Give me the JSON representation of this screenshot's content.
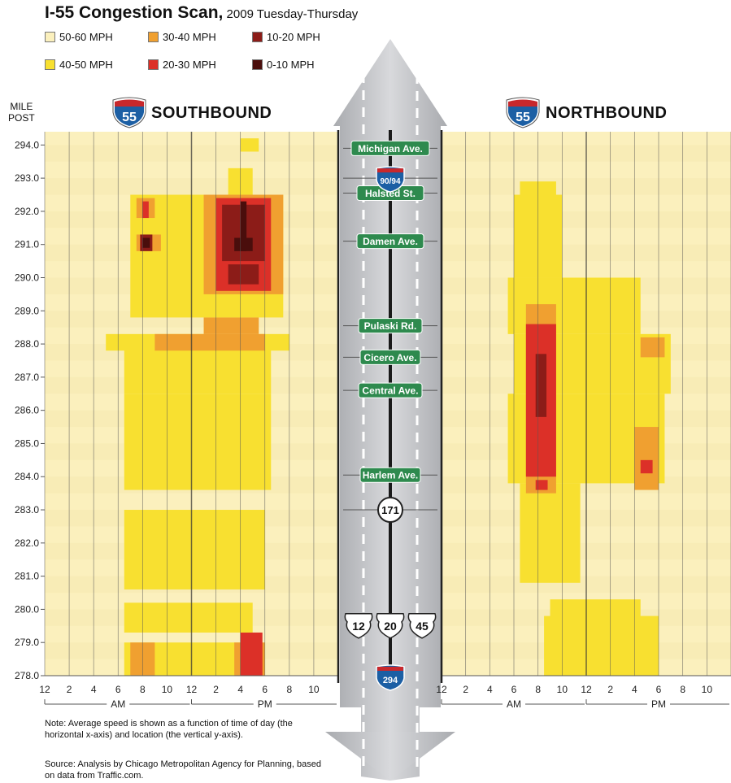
{
  "title": {
    "main": "I-55 Congestion Scan,",
    "sub": " 2009 Tuesday-Thursday"
  },
  "legend": [
    {
      "label": "50-60 MPH",
      "color": "#fbf0bd"
    },
    {
      "label": "30-40 MPH",
      "color": "#f0a030"
    },
    {
      "label": "10-20 MPH",
      "color": "#8c1c18"
    },
    {
      "label": "40-50 MPH",
      "color": "#f8e030"
    },
    {
      "label": "20-30 MPH",
      "color": "#dc3028"
    },
    {
      "label": "0-10 MPH",
      "color": "#4a0e0c"
    }
  ],
  "axis": {
    "mile_post_line1": "MILE",
    "mile_post_line2": "POST"
  },
  "panels": {
    "southbound": {
      "shield": "55",
      "label": "SOUTHBOUND"
    },
    "northbound": {
      "shield": "55",
      "label": "NORTHBOUND"
    }
  },
  "chart_data": {
    "type": "heatmap",
    "x_label_ticks": [
      "12",
      "2",
      "4",
      "6",
      "8",
      "10",
      "12",
      "2",
      "4",
      "6",
      "8",
      "10"
    ],
    "x_period_labels": [
      "AM",
      "PM"
    ],
    "x_range_hours": [
      0,
      24
    ],
    "y_ticks": [
      "294.0",
      "293.0",
      "292.0",
      "291.0",
      "290.0",
      "289.0",
      "288.0",
      "287.0",
      "286.0",
      "285.0",
      "284.0",
      "283.0",
      "282.0",
      "281.0",
      "280.0",
      "279.0",
      "278.0"
    ],
    "y_range_mile_post": [
      278,
      294.4
    ],
    "series": [
      {
        "name": "SOUTHBOUND",
        "cells": [
          {
            "h0": 6.5,
            "h1": 16.0,
            "m0": 278.0,
            "m1": 279.0,
            "speed": "40-50"
          },
          {
            "h0": 7.0,
            "h1": 9.0,
            "m0": 278.0,
            "m1": 279.0,
            "speed": "30-40"
          },
          {
            "h0": 15.5,
            "h1": 18.0,
            "m0": 278.0,
            "m1": 279.0,
            "speed": "30-40"
          },
          {
            "h0": 16.0,
            "h1": 17.8,
            "m0": 278.0,
            "m1": 279.3,
            "speed": "20-30"
          },
          {
            "h0": 6.5,
            "h1": 17.0,
            "m0": 279.3,
            "m1": 280.2,
            "speed": "40-50"
          },
          {
            "h0": 6.5,
            "h1": 18.0,
            "m0": 280.6,
            "m1": 283.0,
            "speed": "40-50"
          },
          {
            "h0": 6.5,
            "h1": 18.5,
            "m0": 283.6,
            "m1": 286.5,
            "speed": "40-50"
          },
          {
            "h0": 6.5,
            "h1": 18.5,
            "m0": 286.5,
            "m1": 288.0,
            "speed": "40-50"
          },
          {
            "h0": 5.0,
            "h1": 20.0,
            "m0": 287.8,
            "m1": 288.3,
            "speed": "40-50"
          },
          {
            "h0": 9.0,
            "h1": 18.0,
            "m0": 287.8,
            "m1": 288.3,
            "speed": "30-40"
          },
          {
            "h0": 13.0,
            "h1": 17.5,
            "m0": 288.3,
            "m1": 288.8,
            "speed": "30-40"
          },
          {
            "h0": 7.0,
            "h1": 19.5,
            "m0": 288.8,
            "m1": 292.5,
            "speed": "40-50"
          },
          {
            "h0": 15.0,
            "h1": 17.0,
            "m0": 292.5,
            "m1": 293.3,
            "speed": "40-50"
          },
          {
            "h0": 16.0,
            "h1": 17.5,
            "m0": 293.8,
            "m1": 294.2,
            "speed": "40-50"
          },
          {
            "h0": 7.5,
            "h1": 9.5,
            "m0": 290.8,
            "m1": 291.3,
            "speed": "30-40"
          },
          {
            "h0": 7.5,
            "h1": 9.0,
            "m0": 291.8,
            "m1": 292.4,
            "speed": "30-40"
          },
          {
            "h0": 8.0,
            "h1": 8.5,
            "m0": 291.8,
            "m1": 292.3,
            "speed": "20-30"
          },
          {
            "h0": 7.8,
            "h1": 8.8,
            "m0": 290.8,
            "m1": 291.3,
            "speed": "10-20"
          },
          {
            "h0": 8.0,
            "h1": 8.6,
            "m0": 290.9,
            "m1": 291.2,
            "speed": "0-10"
          },
          {
            "h0": 13.0,
            "h1": 19.5,
            "m0": 289.5,
            "m1": 292.5,
            "speed": "30-40"
          },
          {
            "h0": 14.0,
            "h1": 18.5,
            "m0": 289.6,
            "m1": 292.4,
            "speed": "20-30"
          },
          {
            "h0": 14.5,
            "h1": 18.0,
            "m0": 290.5,
            "m1": 292.2,
            "speed": "10-20"
          },
          {
            "h0": 15.0,
            "h1": 17.5,
            "m0": 289.8,
            "m1": 290.4,
            "speed": "10-20"
          },
          {
            "h0": 15.5,
            "h1": 17.0,
            "m0": 290.8,
            "m1": 291.2,
            "speed": "0-10"
          },
          {
            "h0": 16.0,
            "h1": 16.5,
            "m0": 290.8,
            "m1": 292.3,
            "speed": "0-10"
          }
        ]
      },
      {
        "name": "NORTHBOUND",
        "cells": [
          {
            "h0": 8.5,
            "h1": 18.0,
            "m0": 278.0,
            "m1": 279.8,
            "speed": "40-50"
          },
          {
            "h0": 9.0,
            "h1": 16.5,
            "m0": 279.6,
            "m1": 280.3,
            "speed": "40-50"
          },
          {
            "h0": 6.5,
            "h1": 11.5,
            "m0": 280.8,
            "m1": 283.8,
            "speed": "40-50"
          },
          {
            "h0": 5.5,
            "h1": 18.5,
            "m0": 283.8,
            "m1": 286.5,
            "speed": "40-50"
          },
          {
            "h0": 6.0,
            "h1": 19.0,
            "m0": 286.5,
            "m1": 288.3,
            "speed": "40-50"
          },
          {
            "h0": 5.5,
            "h1": 16.5,
            "m0": 288.3,
            "m1": 290.0,
            "speed": "40-50"
          },
          {
            "h0": 6.0,
            "h1": 10.0,
            "m0": 290.0,
            "m1": 292.5,
            "speed": "40-50"
          },
          {
            "h0": 6.5,
            "h1": 9.5,
            "m0": 292.5,
            "m1": 292.9,
            "speed": "40-50"
          },
          {
            "h0": 7.0,
            "h1": 9.5,
            "m0": 283.5,
            "m1": 289.2,
            "speed": "30-40"
          },
          {
            "h0": 16.0,
            "h1": 18.0,
            "m0": 283.6,
            "m1": 285.5,
            "speed": "30-40"
          },
          {
            "h0": 16.5,
            "h1": 18.5,
            "m0": 287.6,
            "m1": 288.2,
            "speed": "30-40"
          },
          {
            "h0": 7.0,
            "h1": 9.5,
            "m0": 284.0,
            "m1": 288.6,
            "speed": "20-30"
          },
          {
            "h0": 7.8,
            "h1": 8.8,
            "m0": 283.6,
            "m1": 283.9,
            "speed": "20-30"
          },
          {
            "h0": 16.5,
            "h1": 17.5,
            "m0": 284.1,
            "m1": 284.5,
            "speed": "20-30"
          },
          {
            "h0": 7.8,
            "h1": 8.7,
            "m0": 285.8,
            "m1": 287.7,
            "speed": "10-20"
          }
        ]
      }
    ]
  },
  "road_labels": {
    "michigan": "Michigan Ave.",
    "halsted": "Halsted St.",
    "damen": "Damen Ave.",
    "pulaski": "Pulaski Rd.",
    "cicero": "Cicero Ave.",
    "central": "Central Ave.",
    "harlem": "Harlem Ave.",
    "i9094": "90/94",
    "r171": "171",
    "us12": "12",
    "us20": "20",
    "us45": "45",
    "i294": "294"
  },
  "notes": {
    "note": "Note: Average speed is shown as a function of time of day (the horizontal x-axis) and location (the vertical y-axis).",
    "source": "Source: Analysis by Chicago Metropolitan Agency for Planning, based on data from Traffic.com."
  }
}
